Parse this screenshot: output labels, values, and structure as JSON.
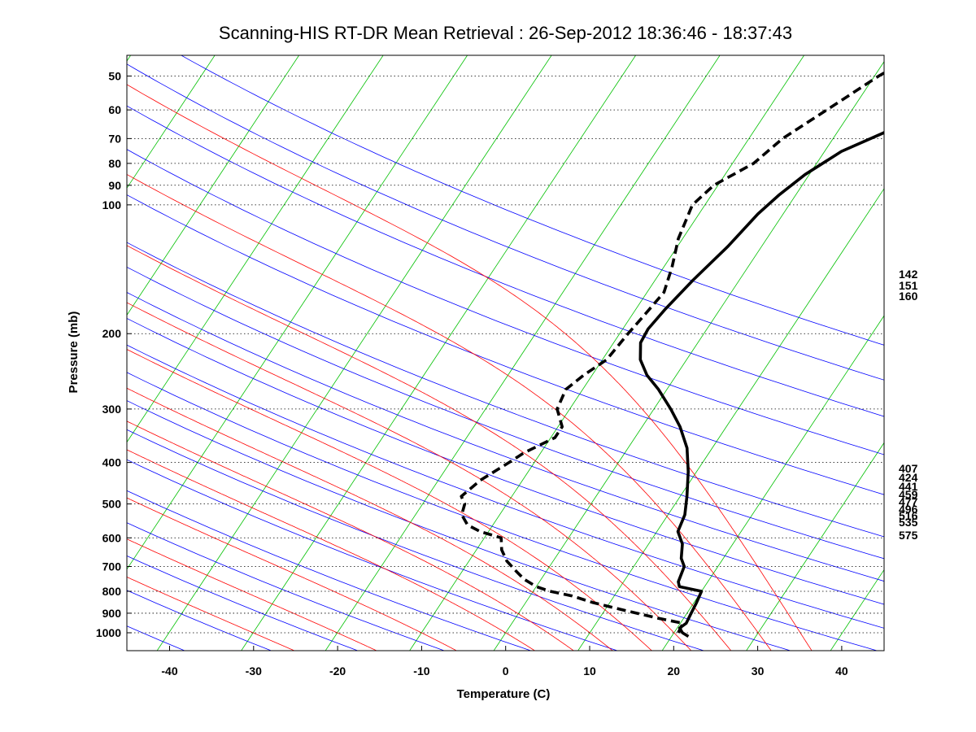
{
  "chart_data": {
    "type": "line",
    "subtype": "skew-T log-P sounding",
    "title": "Scanning-HIS RT-DR Mean Retrieval : 26-Sep-2012 18:36:46 - 18:37:43",
    "xlabel": "Temperature (C)",
    "ylabel": "Pressure (mb)",
    "xlim": [
      -45,
      45
    ],
    "ylim_mb": [
      1200,
      45
    ],
    "x_ticks": [
      -40,
      -30,
      -20,
      -10,
      0,
      10,
      20,
      30,
      40
    ],
    "y_ticks": [
      50,
      60,
      70,
      80,
      90,
      100,
      200,
      300,
      400,
      500,
      600,
      700,
      800,
      900,
      1000
    ],
    "grid": "horizontal dotted at pressure ticks",
    "right_labels": [
      "142",
      "151",
      "160",
      "407",
      "424",
      "441",
      "459",
      "477",
      "496",
      "516",
      "535",
      "575"
    ],
    "series": [
      {
        "name": "Temperature",
        "style": "solid",
        "color": "#000000",
        "points": [
          {
            "p": 1020,
            "t": 22.0
          },
          {
            "p": 1000,
            "t": 21.0
          },
          {
            "p": 975,
            "t": 20.3
          },
          {
            "p": 950,
            "t": 20.7
          },
          {
            "p": 900,
            "t": 20.5
          },
          {
            "p": 850,
            "t": 20.3
          },
          {
            "p": 800,
            "t": 20.0
          },
          {
            "p": 780,
            "t": 17.0
          },
          {
            "p": 760,
            "t": 16.5
          },
          {
            "p": 700,
            "t": 16.0
          },
          {
            "p": 670,
            "t": 15.0
          },
          {
            "p": 620,
            "t": 14.0
          },
          {
            "p": 580,
            "t": 12.5
          },
          {
            "p": 530,
            "t": 12.0
          },
          {
            "p": 480,
            "t": 10.8
          },
          {
            "p": 420,
            "t": 9.0
          },
          {
            "p": 370,
            "t": 7.0
          },
          {
            "p": 330,
            "t": 4.5
          },
          {
            "p": 300,
            "t": 2.0
          },
          {
            "p": 270,
            "t": -1.0
          },
          {
            "p": 250,
            "t": -3.5
          },
          {
            "p": 230,
            "t": -5.5
          },
          {
            "p": 210,
            "t": -6.8
          },
          {
            "p": 195,
            "t": -7.0
          },
          {
            "p": 175,
            "t": -6.5
          },
          {
            "p": 150,
            "t": -5.5
          },
          {
            "p": 125,
            "t": -4.0
          },
          {
            "p": 105,
            "t": -3.0
          },
          {
            "p": 95,
            "t": -2.0
          },
          {
            "p": 85,
            "t": -0.5
          },
          {
            "p": 75,
            "t": 2.0
          },
          {
            "p": 68,
            "t": 5.5
          },
          {
            "p": 62,
            "t": 8.0
          },
          {
            "p": 55,
            "t": 11.0
          },
          {
            "p": 50,
            "t": 13.5
          },
          {
            "p": 45,
            "t": 15.0
          }
        ]
      },
      {
        "name": "Dewpoint",
        "style": "dashed",
        "color": "#000000",
        "points": [
          {
            "p": 1000,
            "t": 20.5
          },
          {
            "p": 950,
            "t": 20.3
          },
          {
            "p": 925,
            "t": 17.0
          },
          {
            "p": 900,
            "t": 14.0
          },
          {
            "p": 875,
            "t": 11.0
          },
          {
            "p": 850,
            "t": 8.0
          },
          {
            "p": 820,
            "t": 5.0
          },
          {
            "p": 800,
            "t": 2.0
          },
          {
            "p": 780,
            "t": 0.0
          },
          {
            "p": 750,
            "t": -2.0
          },
          {
            "p": 720,
            "t": -3.5
          },
          {
            "p": 680,
            "t": -5.5
          },
          {
            "p": 640,
            "t": -7.0
          },
          {
            "p": 600,
            "t": -8.0
          },
          {
            "p": 580,
            "t": -11.0
          },
          {
            "p": 560,
            "t": -13.0
          },
          {
            "p": 530,
            "t": -14.5
          },
          {
            "p": 500,
            "t": -15.0
          },
          {
            "p": 480,
            "t": -16.0
          },
          {
            "p": 440,
            "t": -15.0
          },
          {
            "p": 400,
            "t": -13.0
          },
          {
            "p": 380,
            "t": -12.0
          },
          {
            "p": 350,
            "t": -9.5
          },
          {
            "p": 330,
            "t": -9.5
          },
          {
            "p": 300,
            "t": -11.5
          },
          {
            "p": 270,
            "t": -12.0
          },
          {
            "p": 250,
            "t": -11.0
          },
          {
            "p": 230,
            "t": -9.5
          },
          {
            "p": 200,
            "t": -9.0
          },
          {
            "p": 180,
            "t": -8.5
          },
          {
            "p": 160,
            "t": -8.0
          },
          {
            "p": 140,
            "t": -9.0
          },
          {
            "p": 120,
            "t": -10.5
          },
          {
            "p": 100,
            "t": -11.5
          },
          {
            "p": 90,
            "t": -10.5
          },
          {
            "p": 80,
            "t": -7.5
          },
          {
            "p": 70,
            "t": -6.0
          },
          {
            "p": 60,
            "t": -3.0
          },
          {
            "p": 50,
            "t": 0.5
          },
          {
            "p": 45,
            "t": 3.0
          }
        ]
      }
    ],
    "background_lines": {
      "dry_adiabats_theta_K": [
        230,
        240,
        250,
        260,
        270,
        280,
        290,
        300,
        310,
        320,
        330,
        340,
        350,
        360,
        380,
        400,
        420,
        440,
        460
      ],
      "moist_adiabats_C": [
        -30,
        -20,
        -10,
        0,
        5,
        10,
        15,
        20,
        25,
        30,
        35
      ],
      "isotherm_step_C": 10,
      "colors": {
        "dry": "#0000ff",
        "moist": "#ff0000",
        "isotherm": "#00c000",
        "mixed_top": "#8000a0"
      }
    }
  }
}
